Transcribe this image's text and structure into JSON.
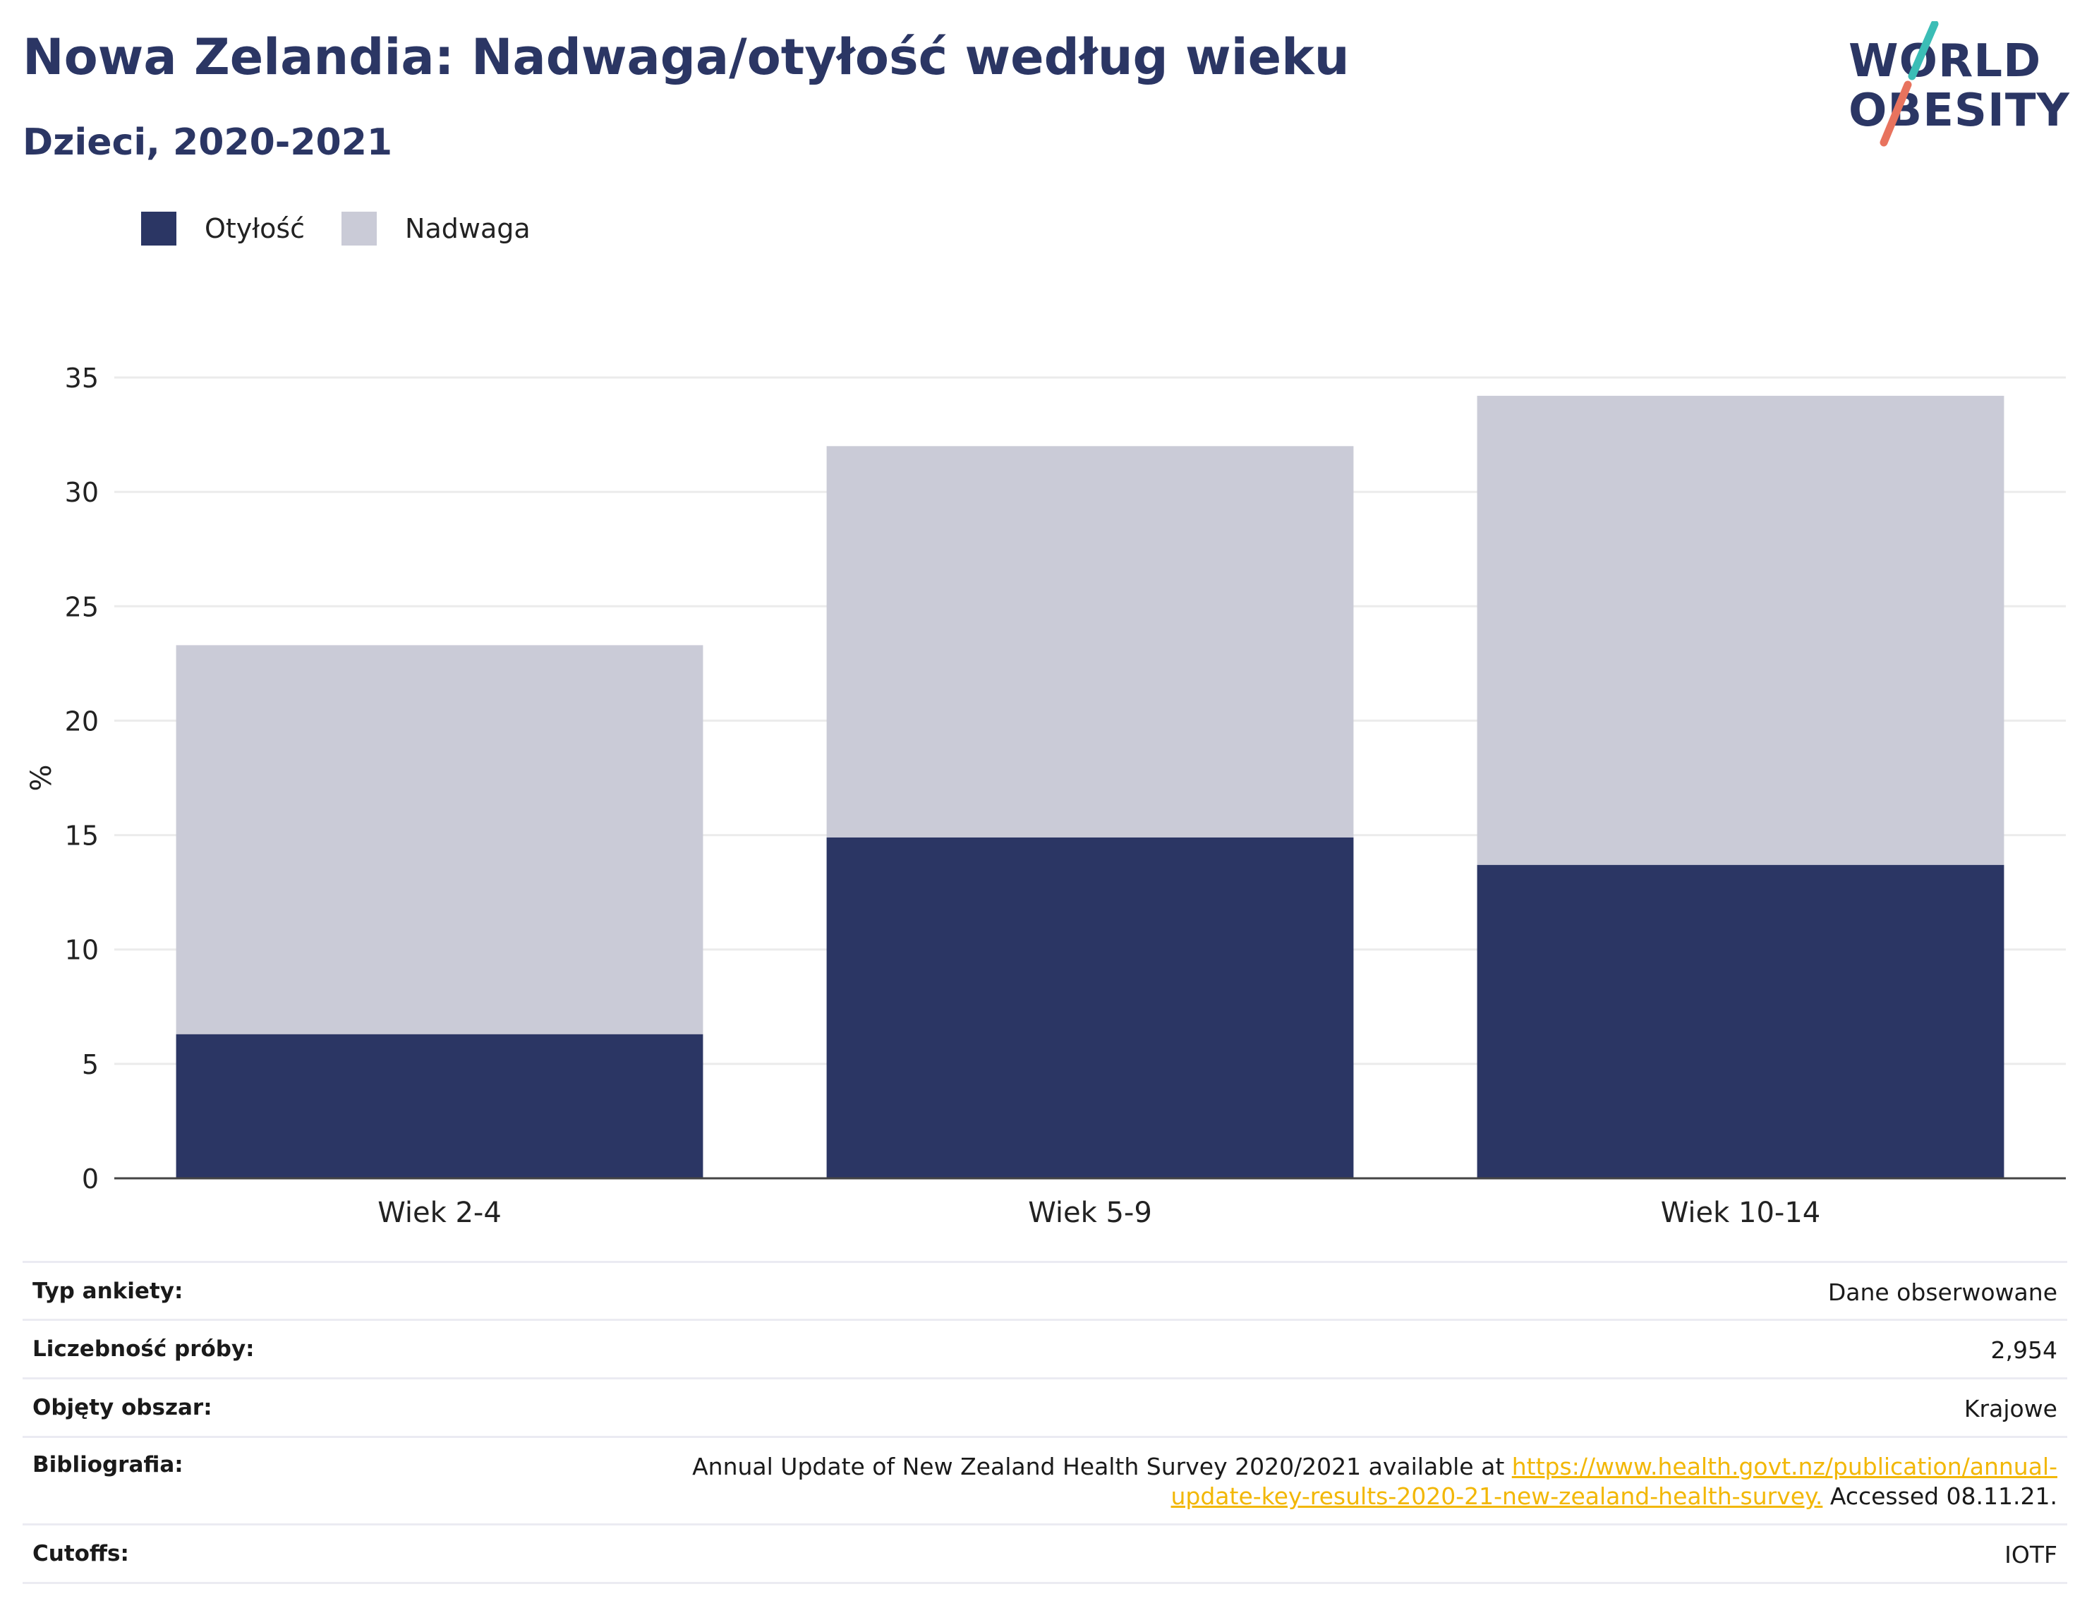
{
  "header": {
    "title": "Nowa Zelandia: Nadwaga/otyłość według wieku",
    "subtitle": "Dzieci, 2020-2021"
  },
  "logo": {
    "line1": "WORLD",
    "line2": "OBESITY"
  },
  "legend": {
    "items": [
      {
        "label": "Otyłość",
        "color": "#2b3664"
      },
      {
        "label": "Nadwaga",
        "color": "#cacbd7"
      }
    ]
  },
  "chart_data": {
    "type": "bar",
    "stacked": true,
    "categories": [
      "Wiek 2-4",
      "Wiek 5-9",
      "Wiek 10-14"
    ],
    "series": [
      {
        "name": "Otyłość",
        "color": "#2b3664",
        "values": [
          6.3,
          14.9,
          13.7
        ]
      },
      {
        "name": "Nadwaga",
        "color": "#cacbd7",
        "values": [
          17.0,
          17.1,
          20.5
        ]
      }
    ],
    "ylabel": "%",
    "ylim": [
      0,
      35
    ],
    "yticks": [
      0,
      5,
      10,
      15,
      20,
      25,
      30,
      35
    ],
    "grid": true,
    "legend": "top-left"
  },
  "info": {
    "rows": [
      {
        "label": "Typ ankiety:",
        "value": "Dane obserwowane"
      },
      {
        "label": "Liczebność próby:",
        "value": "2,954"
      },
      {
        "label": "Objęty obszar:",
        "value": "Krajowe"
      },
      {
        "label": "Cutoffs:",
        "value": "IOTF"
      }
    ],
    "bibliography": {
      "label": "Bibliografia:",
      "text_before": "Annual Update of New Zealand Health Survey 2020/2021 available at",
      "link": "https://www.health.govt.nz/publication/annual-update-key-results-2020-21-new-zealand-health-survey.",
      "text_after": "Accessed 08.11.21."
    }
  }
}
